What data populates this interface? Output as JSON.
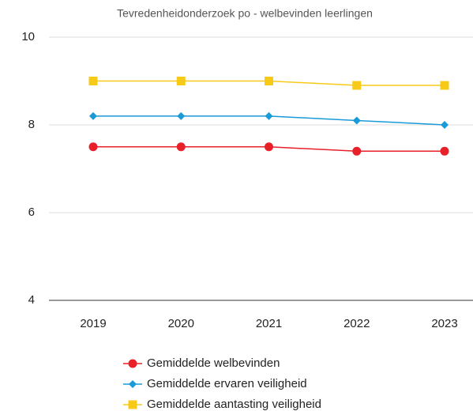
{
  "chart_data": {
    "type": "line",
    "title": "Tevredenheidonderzoek po - welbevinden leerlingen",
    "categories": [
      "2019",
      "2020",
      "2021",
      "2022",
      "2023"
    ],
    "series": [
      {
        "name": "Gemiddelde welbevinden",
        "color": "#e8202a",
        "marker": "circle",
        "values": [
          7.5,
          7.5,
          7.5,
          7.4,
          7.4
        ]
      },
      {
        "name": "Gemiddelde ervaren veiligheid",
        "color": "#1a9ad6",
        "marker": "diamond",
        "values": [
          8.2,
          8.2,
          8.2,
          8.1,
          8.0
        ]
      },
      {
        "name": "Gemiddelde aantasting veiligheid",
        "color": "#f7ca18",
        "marker": "square",
        "values": [
          9.0,
          9.0,
          9.0,
          8.9,
          8.9
        ]
      }
    ],
    "ylim": [
      4,
      10
    ],
    "yticks": [
      4,
      6,
      8,
      10
    ],
    "grid": true
  }
}
